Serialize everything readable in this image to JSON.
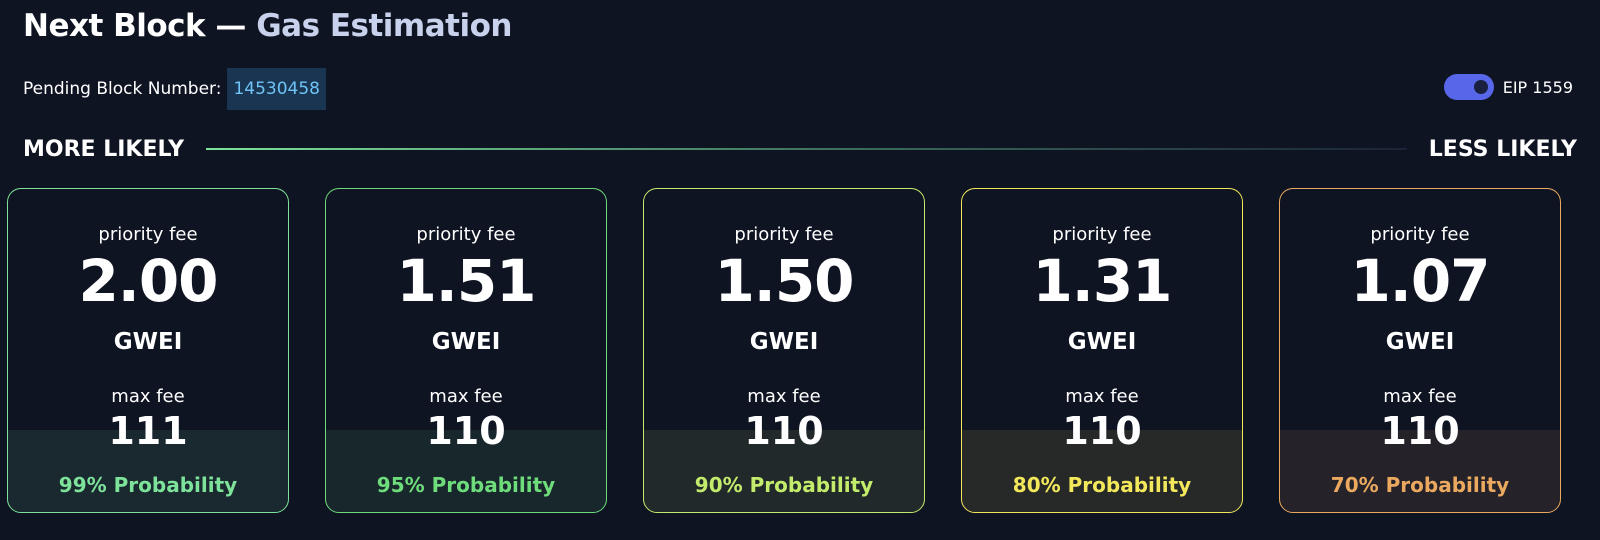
{
  "header": {
    "title_main": "Next Block —",
    "title_accent": "Gas Estimation"
  },
  "pending": {
    "label": "Pending Block Number:",
    "value": "14530458"
  },
  "eip_toggle": {
    "label": "EIP 1559",
    "on": true
  },
  "likelihood": {
    "left": "MORE LIKELY",
    "right": "LESS LIKELY"
  },
  "cards": [
    {
      "priority_label": "priority fee",
      "priority_value": "2.00",
      "unit": "GWEI",
      "max_label": "max fee",
      "max_value": "111",
      "probability": "99% Probability",
      "color": "#7de39a"
    },
    {
      "priority_label": "priority fee",
      "priority_value": "1.51",
      "unit": "GWEI",
      "max_label": "max fee",
      "max_value": "110",
      "probability": "95% Probability",
      "color": "#6edc7b"
    },
    {
      "priority_label": "priority fee",
      "priority_value": "1.50",
      "unit": "GWEI",
      "max_label": "max fee",
      "max_value": "110",
      "probability": "90% Probability",
      "color": "#c4ec6c"
    },
    {
      "priority_label": "priority fee",
      "priority_value": "1.31",
      "unit": "GWEI",
      "max_label": "max fee",
      "max_value": "110",
      "probability": "80% Probability",
      "color": "#f3e85b"
    },
    {
      "priority_label": "priority fee",
      "priority_value": "1.07",
      "unit": "GWEI",
      "max_label": "max fee",
      "max_value": "110",
      "probability": "70% Probability",
      "color": "#eba95f"
    }
  ]
}
